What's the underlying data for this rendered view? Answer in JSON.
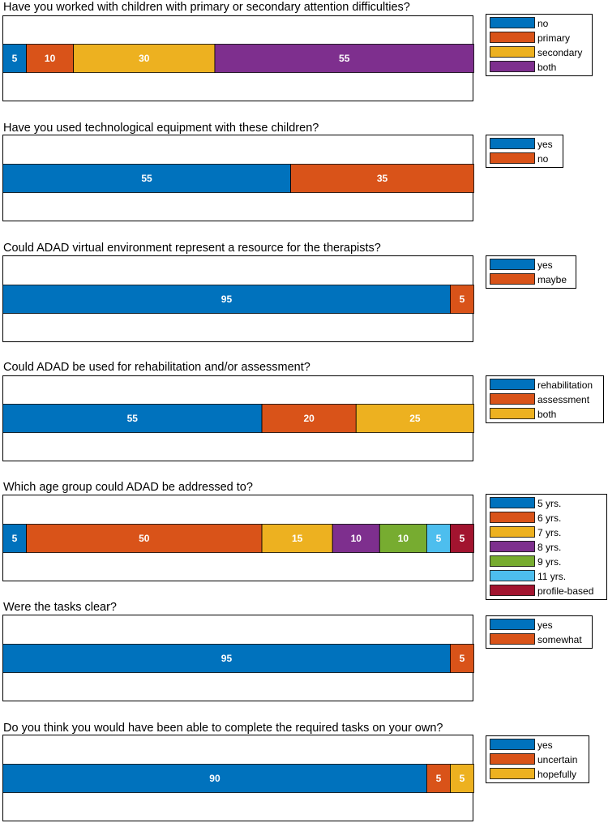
{
  "chart_data": [
    {
      "type": "bar",
      "orientation": "horizontal-stacked",
      "title": "Have you worked with children with primary or secondary attention difficulties?",
      "series": [
        {
          "name": "no",
          "value": 5,
          "color": "#0072BD"
        },
        {
          "name": "primary",
          "value": 10,
          "color": "#D95319"
        },
        {
          "name": "secondary",
          "value": 30,
          "color": "#EDB120"
        },
        {
          "name": "both",
          "value": 55,
          "color": "#7E2F8E"
        }
      ],
      "xlim": [
        0,
        100
      ],
      "legend_placement": "right"
    },
    {
      "type": "bar",
      "orientation": "horizontal-stacked",
      "title": "Have you used technological equipment with these children?",
      "series": [
        {
          "name": "yes",
          "value": 55,
          "color": "#0072BD"
        },
        {
          "name": "no",
          "value": 35,
          "color": "#D95319"
        }
      ],
      "xlim": [
        0,
        90
      ],
      "legend_placement": "right"
    },
    {
      "type": "bar",
      "orientation": "horizontal-stacked",
      "title": "Could ADAD virtual environment represent a resource for the therapists?",
      "series": [
        {
          "name": "yes",
          "value": 95,
          "color": "#0072BD"
        },
        {
          "name": "maybe",
          "value": 5,
          "color": "#D95319"
        }
      ],
      "xlim": [
        0,
        100
      ],
      "legend_placement": "right"
    },
    {
      "type": "bar",
      "orientation": "horizontal-stacked",
      "title": "Could ADAD be used for rehabilitation and/or assessment?",
      "series": [
        {
          "name": "rehabilitation",
          "value": 55,
          "color": "#0072BD"
        },
        {
          "name": "assessment",
          "value": 20,
          "color": "#D95319"
        },
        {
          "name": "both",
          "value": 25,
          "color": "#EDB120"
        }
      ],
      "xlim": [
        0,
        100
      ],
      "legend_placement": "right"
    },
    {
      "type": "bar",
      "orientation": "horizontal-stacked",
      "title": "Which age group could ADAD be addressed to?",
      "series": [
        {
          "name": "5 yrs.",
          "value": 5,
          "color": "#0072BD"
        },
        {
          "name": "6 yrs.",
          "value": 50,
          "color": "#D95319"
        },
        {
          "name": "7 yrs.",
          "value": 15,
          "color": "#EDB120"
        },
        {
          "name": "8 yrs.",
          "value": 10,
          "color": "#7E2F8E"
        },
        {
          "name": "9 yrs.",
          "value": 10,
          "color": "#77AC30"
        },
        {
          "name": "11 yrs.",
          "value": 5,
          "color": "#4DBEEE"
        },
        {
          "name": "profile-based",
          "value": 5,
          "color": "#A2142F"
        }
      ],
      "xlim": [
        0,
        100
      ],
      "legend_placement": "right"
    },
    {
      "type": "bar",
      "orientation": "horizontal-stacked",
      "title": "Were the tasks clear?",
      "series": [
        {
          "name": "yes",
          "value": 95,
          "color": "#0072BD"
        },
        {
          "name": "somewhat",
          "value": 5,
          "color": "#D95319"
        }
      ],
      "xlim": [
        0,
        100
      ],
      "legend_placement": "right"
    },
    {
      "type": "bar",
      "orientation": "horizontal-stacked",
      "title": "Do you think you would have been able to complete the required tasks on your own?",
      "series": [
        {
          "name": "yes",
          "value": 90,
          "color": "#0072BD"
        },
        {
          "name": "uncertain",
          "value": 5,
          "color": "#D95319"
        },
        {
          "name": "hopefully",
          "value": 5,
          "color": "#EDB120"
        }
      ],
      "xlim": [
        0,
        100
      ],
      "legend_placement": "right"
    }
  ]
}
